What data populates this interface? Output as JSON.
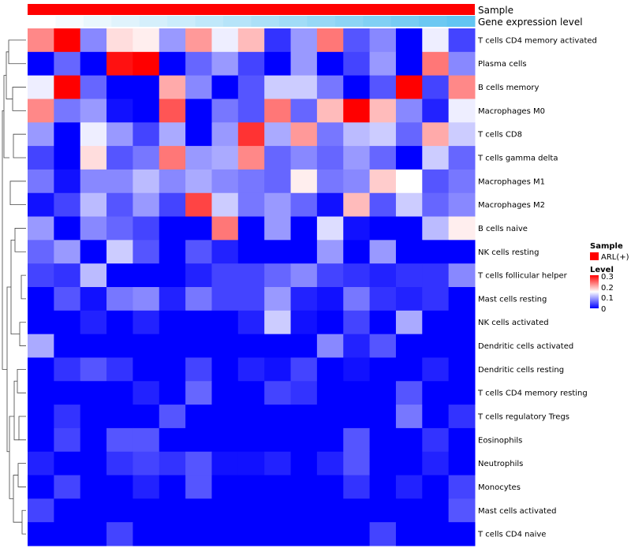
{
  "chart_data": {
    "type": "heatmap",
    "title": "",
    "column_annotations": [
      {
        "label": "Sample",
        "kind": "categorical",
        "color": "#ff0000"
      },
      {
        "label": "Gene expression level",
        "kind": "gradient",
        "values": [
          0.0,
          0.06,
          0.12,
          0.18,
          0.24,
          0.3,
          0.36,
          0.42,
          0.48,
          0.54,
          0.6,
          0.66,
          0.72,
          0.78,
          0.84,
          0.9
        ]
      }
    ],
    "rows": [
      "T cells CD4 memory activated",
      "Plasma cells",
      "B cells memory",
      "Macrophages M0",
      "T cells CD8",
      "T cells gamma delta",
      "Macrophages M1",
      "Macrophages M2",
      "B cells naive",
      "NK cells resting",
      "T cells follicular helper",
      "Mast cells resting",
      "NK cells activated",
      "Dendritic cells activated",
      "Dendritic cells resting",
      "T cells CD4 memory resting",
      "T cells regulatory  Tregs",
      "Eosinophils",
      "Neutrophils",
      "Monocytes",
      "Mast cells activated",
      "T cells CD4 naive"
    ],
    "values": [
      [
        0.22,
        0.3,
        0.08,
        0.17,
        0.16,
        0.09,
        0.21,
        0.14,
        0.19,
        0.03,
        0.09,
        0.23,
        0.05,
        0.08,
        0.0,
        0.14,
        0.04
      ],
      [
        0.0,
        0.06,
        0.0,
        0.29,
        0.3,
        0.0,
        0.06,
        0.09,
        0.04,
        0.0,
        0.09,
        0.0,
        0.04,
        0.09,
        0.0,
        0.23,
        0.08
      ],
      [
        0.14,
        0.3,
        0.06,
        0.0,
        0.0,
        0.2,
        0.08,
        0.0,
        0.05,
        0.12,
        0.12,
        0.07,
        0.0,
        0.05,
        0.3,
        0.04,
        0.22
      ],
      [
        0.22,
        0.07,
        0.09,
        0.01,
        0.0,
        0.25,
        0.0,
        0.07,
        0.05,
        0.23,
        0.06,
        0.19,
        0.3,
        0.19,
        0.08,
        0.02,
        0.14
      ],
      [
        0.09,
        0.0,
        0.14,
        0.09,
        0.04,
        0.1,
        0.0,
        0.09,
        0.27,
        0.1,
        0.21,
        0.07,
        0.11,
        0.12,
        0.06,
        0.2,
        0.12
      ],
      [
        0.04,
        0.0,
        0.17,
        0.05,
        0.07,
        0.23,
        0.09,
        0.1,
        0.22,
        0.06,
        0.08,
        0.06,
        0.09,
        0.06,
        0.0,
        0.12,
        0.06
      ],
      [
        0.07,
        0.01,
        0.08,
        0.08,
        0.11,
        0.08,
        0.1,
        0.08,
        0.07,
        0.06,
        0.16,
        0.07,
        0.08,
        0.18,
        0.15,
        0.05,
        0.07
      ],
      [
        0.01,
        0.04,
        0.11,
        0.05,
        0.09,
        0.04,
        0.26,
        0.12,
        0.07,
        0.09,
        0.06,
        0.01,
        0.19,
        0.05,
        0.12,
        0.06,
        0.08
      ],
      [
        0.09,
        0.0,
        0.08,
        0.06,
        0.04,
        0.0,
        0.0,
        0.23,
        0.0,
        0.09,
        0.0,
        0.13,
        0.01,
        0.0,
        0.0,
        0.11,
        0.16
      ],
      [
        0.06,
        0.09,
        0.0,
        0.12,
        0.05,
        0.0,
        0.05,
        0.02,
        0.0,
        0.0,
        0.0,
        0.09,
        0.0,
        0.09,
        0.0,
        0.0,
        0.0
      ],
      [
        0.04,
        0.03,
        0.11,
        0.0,
        0.0,
        0.0,
        0.02,
        0.04,
        0.04,
        0.06,
        0.08,
        0.04,
        0.03,
        0.02,
        0.03,
        0.03,
        0.08
      ],
      [
        0.0,
        0.05,
        0.01,
        0.07,
        0.08,
        0.02,
        0.07,
        0.04,
        0.04,
        0.09,
        0.02,
        0.01,
        0.07,
        0.03,
        0.02,
        0.03,
        0.0
      ],
      [
        0.0,
        0.0,
        0.02,
        0.0,
        0.02,
        0.0,
        0.0,
        0.0,
        0.02,
        0.12,
        0.01,
        0.0,
        0.04,
        0.0,
        0.1,
        0.0,
        0.0
      ],
      [
        0.1,
        0.0,
        0.0,
        0.0,
        0.0,
        0.0,
        0.0,
        0.0,
        0.0,
        0.0,
        0.0,
        0.08,
        0.02,
        0.05,
        0.0,
        0.0,
        0.0
      ],
      [
        0.0,
        0.03,
        0.05,
        0.03,
        0.0,
        0.0,
        0.04,
        0.0,
        0.02,
        0.01,
        0.04,
        0.0,
        0.01,
        0.0,
        0.0,
        0.02,
        0.0
      ],
      [
        0.0,
        0.0,
        0.0,
        0.0,
        0.02,
        0.0,
        0.06,
        0.0,
        0.0,
        0.04,
        0.03,
        0.0,
        0.0,
        0.0,
        0.05,
        0.0,
        0.0
      ],
      [
        0.0,
        0.03,
        0.0,
        0.0,
        0.0,
        0.05,
        0.0,
        0.0,
        0.0,
        0.0,
        0.0,
        0.0,
        0.0,
        0.0,
        0.07,
        0.0,
        0.03
      ],
      [
        0.0,
        0.04,
        0.0,
        0.05,
        0.05,
        0.0,
        0.0,
        0.0,
        0.0,
        0.0,
        0.0,
        0.0,
        0.05,
        0.0,
        0.0,
        0.03,
        0.0
      ],
      [
        0.02,
        0.0,
        0.0,
        0.03,
        0.04,
        0.03,
        0.05,
        0.01,
        0.01,
        0.02,
        0.0,
        0.02,
        0.05,
        0.0,
        0.0,
        0.02,
        0.0
      ],
      [
        0.0,
        0.04,
        0.0,
        0.0,
        0.02,
        0.0,
        0.05,
        0.0,
        0.0,
        0.0,
        0.0,
        0.0,
        0.03,
        0.0,
        0.02,
        0.0,
        0.04
      ],
      [
        0.04,
        0.0,
        0.0,
        0.0,
        0.0,
        0.0,
        0.0,
        0.0,
        0.0,
        0.0,
        0.0,
        0.0,
        0.0,
        0.0,
        0.0,
        0.0,
        0.05
      ],
      [
        0.0,
        0.0,
        0.0,
        0.04,
        0.0,
        0.0,
        0.0,
        0.0,
        0.0,
        0.0,
        0.0,
        0.0,
        0.0,
        0.04,
        0.0,
        0.0,
        0.0
      ]
    ],
    "color_scale": {
      "min": 0,
      "max": 0.3,
      "low": "#0000ff",
      "mid": "#ffffff",
      "high": "#ff0000",
      "mid_value": 0.15
    },
    "legend": {
      "position": "right",
      "sample_title": "Sample",
      "sample_entry": "ARL(+)",
      "sample_color": "#ff0000",
      "level_title": "Level",
      "level_ticks": [
        "0.3",
        "0.2",
        "0.1",
        "0"
      ]
    },
    "dendrogram": "row clustering (left)"
  }
}
